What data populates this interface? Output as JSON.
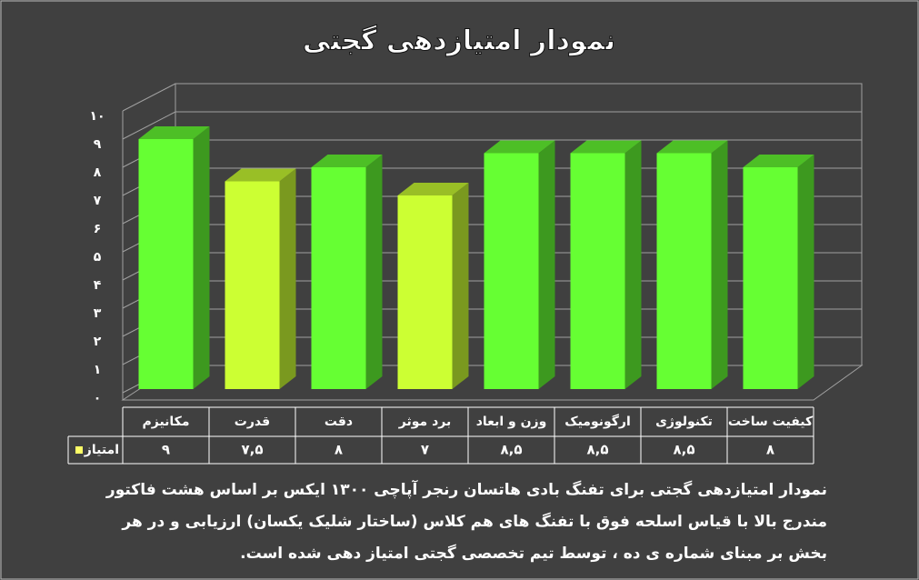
{
  "chart_data": {
    "type": "bar3d",
    "title": "نمودار امتیازدهی گجتی",
    "categories": [
      "مکانیزم",
      "قدرت",
      "دقت",
      "برد موثر",
      "وزن و ابعاد",
      "ارگونومیک",
      "تکنولوژی",
      "کیفیت ساخت"
    ],
    "series": [
      {
        "name": "امتیاز",
        "color": "#ffff66",
        "colors": [
          "#66ff33",
          "#ccff33",
          "#66ff33",
          "#ccff33",
          "#66ff33",
          "#66ff33",
          "#66ff33",
          "#66ff33"
        ],
        "values": [
          9,
          7.5,
          8,
          7,
          8.5,
          8.5,
          8.5,
          8
        ],
        "value_labels": [
          "۹",
          "۷,۵",
          "۸",
          "۷",
          "۸,۵",
          "۸,۵",
          "۸,۵",
          "۸"
        ]
      }
    ],
    "ylim": [
      0,
      10
    ],
    "yticks": [
      {
        "value": 0,
        "label": "۰"
      },
      {
        "value": 1,
        "label": "۱"
      },
      {
        "value": 2,
        "label": "۲"
      },
      {
        "value": 3,
        "label": "۳"
      },
      {
        "value": 4,
        "label": "۴"
      },
      {
        "value": 5,
        "label": "۵"
      },
      {
        "value": 6,
        "label": "۶"
      },
      {
        "value": 7,
        "label": "۷"
      },
      {
        "value": 8,
        "label": "۸"
      },
      {
        "value": 9,
        "label": "۹"
      },
      {
        "value": 10,
        "label": "۱۰"
      }
    ],
    "grid": true,
    "caption": "نمودار امتیازدهی گجتی برای تفنگ بادی هاتسان رنجر آپاچی ۱۳۰۰ ایکس بر اساس هشت فاکتور مندرج بالا با قیاس اسلحه فوق با تفنگ های هم کلاس (ساختار شلیک یکسان) ارزیابی و در هر بخش بر مبنای شماره ی ده ، توسط تیم تخصصی گجتی امتیاز دهی شده است."
  }
}
